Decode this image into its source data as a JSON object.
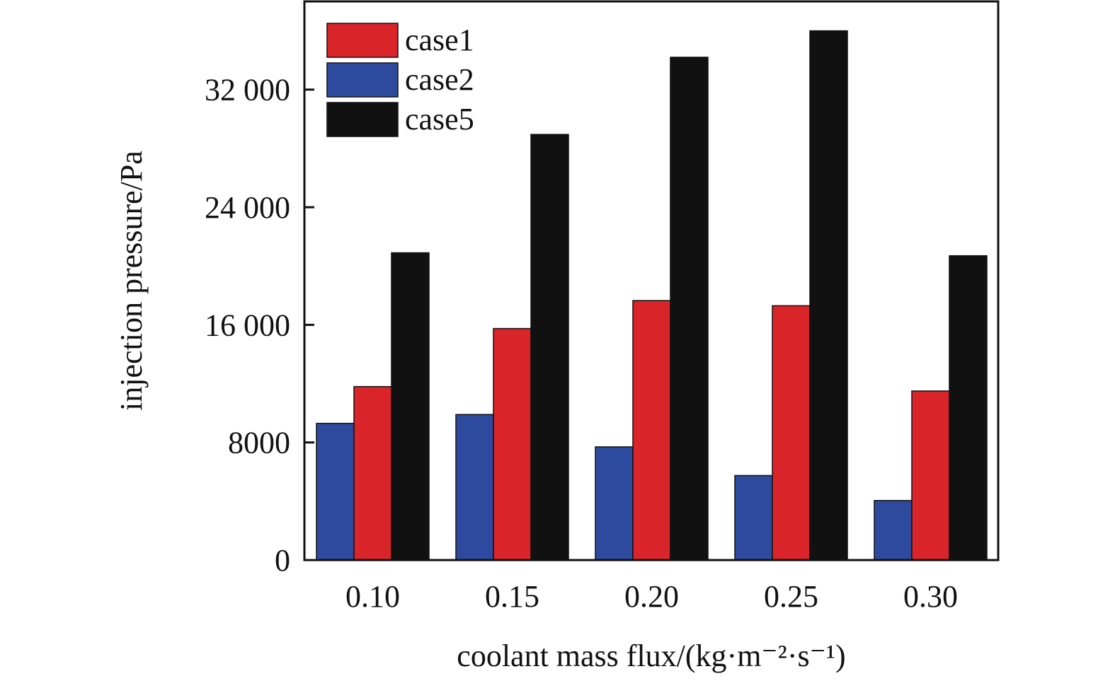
{
  "chart_data": {
    "type": "bar",
    "xlabel": "coolant mass flux/(kg·m⁻²·s⁻¹)",
    "ylabel": "injection pressure/Pa",
    "categories": [
      "0.10",
      "0.15",
      "0.20",
      "0.25",
      "0.30"
    ],
    "ylim": [
      0,
      38000
    ],
    "yticks": [
      0,
      8000,
      16000,
      24000,
      32000
    ],
    "ytick_labels": [
      "0",
      "8000",
      "16 000",
      "24 000",
      "32 000"
    ],
    "series": [
      {
        "name": "case2",
        "color": "#2e4a9e",
        "values": [
          9300,
          9900,
          7700,
          5750,
          4050
        ]
      },
      {
        "name": "case1",
        "color": "#d9252a",
        "values": [
          11800,
          15750,
          17650,
          17300,
          11500
        ]
      },
      {
        "name": "case5",
        "color": "#111111",
        "values": [
          20900,
          28950,
          34200,
          36000,
          20700
        ]
      }
    ],
    "legend": {
      "placement": "top-left",
      "order": [
        "case1",
        "case2",
        "case5"
      ]
    },
    "grid": false
  }
}
